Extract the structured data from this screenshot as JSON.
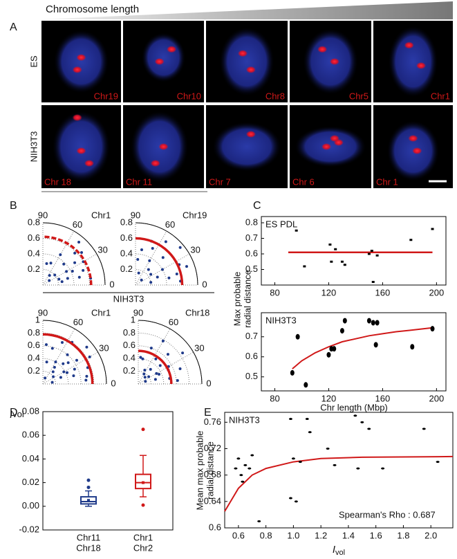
{
  "header": {
    "title": "Chromosome length"
  },
  "panel_labels": [
    "A",
    "B",
    "C",
    "D",
    "E"
  ],
  "panel_a": {
    "row_labels": [
      "ES",
      "NIH3T3"
    ],
    "rows": [
      [
        "Chr19",
        "Chr10",
        "Chr8",
        "Chr5",
        "Chr1"
      ],
      [
        "Chr 18",
        "Chr 11",
        "Chr 7",
        "Chr 6",
        "Chr 1"
      ]
    ]
  },
  "panel_b": {
    "group_label": "NIH3T3"
  },
  "chart_data": [
    {
      "type": "polar",
      "title": "Chr1",
      "rlim": [
        0,
        0.8
      ],
      "rticks": [
        0.2,
        0.4,
        0.6,
        0.8
      ],
      "angle_ticks": [
        0,
        30,
        60,
        90
      ],
      "r": [
        0.72,
        0.65,
        0.6,
        0.55,
        0.5,
        0.45,
        0.42,
        0.38,
        0.33,
        0.3,
        0.25,
        0.2,
        0.15,
        0.62,
        0.58,
        0.48,
        0.35,
        0.28,
        0.22,
        0.1
      ],
      "theta": [
        50,
        40,
        30,
        20,
        35,
        60,
        25,
        45,
        15,
        70,
        10,
        40,
        55,
        8,
        45,
        12,
        30,
        80,
        20,
        35
      ],
      "color": "#1f3a8a",
      "fit_radius": 0.62,
      "fit_color": "#d01818",
      "fit_dashed": true
    },
    {
      "type": "polar",
      "title": "Chr19",
      "rlim": [
        0,
        0.8
      ],
      "rticks": [
        0.2,
        0.4,
        0.6,
        0.8
      ],
      "angle_ticks": [
        0,
        30,
        60,
        90
      ],
      "r": [
        0.75,
        0.68,
        0.62,
        0.6,
        0.55,
        0.5,
        0.46,
        0.4,
        0.36,
        0.3,
        0.26,
        0.2,
        0.16,
        0.1,
        0.7,
        0.52,
        0.44,
        0.33,
        0.24,
        0.58
      ],
      "theta": [
        40,
        55,
        25,
        70,
        15,
        45,
        80,
        30,
        60,
        20,
        50,
        10,
        75,
        40,
        20,
        65,
        12,
        85,
        35,
        5
      ],
      "color": "#1f3a8a",
      "fit_radius": 0.6,
      "fit_color": "#d01818",
      "fit_dashed": false
    },
    {
      "type": "polar",
      "title": "Chr1",
      "rlim": [
        0,
        1
      ],
      "rticks": [
        0.2,
        0.4,
        0.6,
        0.8,
        1
      ],
      "angle_ticks": [
        0,
        30,
        60,
        90
      ],
      "r": [
        0.9,
        0.85,
        0.8,
        0.75,
        0.72,
        0.7,
        0.65,
        0.6,
        0.58,
        0.55,
        0.5,
        0.45,
        0.4,
        0.38,
        0.35,
        0.3,
        0.25,
        0.2,
        0.15,
        0.1,
        0.68,
        0.62,
        0.52,
        0.42,
        0.32
      ],
      "theta": [
        40,
        30,
        55,
        20,
        65,
        10,
        35,
        50,
        75,
        25,
        15,
        45,
        60,
        30,
        80,
        20,
        50,
        35,
        10,
        70,
        5,
        85,
        40,
        25,
        55
      ],
      "color": "#1f3a8a",
      "fit_radius": 0.78,
      "fit_color": "#d01818",
      "fit_dashed": false
    },
    {
      "type": "polar",
      "title": "Chr18",
      "rlim": [
        0,
        1
      ],
      "rticks": [
        0.2,
        0.4,
        0.6,
        0.8,
        1
      ],
      "angle_ticks": [
        0,
        30,
        60,
        90
      ],
      "r": [
        0.85,
        0.78,
        0.7,
        0.66,
        0.6,
        0.55,
        0.5,
        0.48,
        0.45,
        0.4,
        0.36,
        0.3,
        0.28,
        0.24,
        0.2,
        0.15,
        0.12,
        0.62,
        0.42,
        0.33,
        0.18,
        0.52
      ],
      "theta": [
        35,
        60,
        20,
        45,
        70,
        30,
        10,
        55,
        40,
        80,
        25,
        50,
        15,
        65,
        35,
        45,
        20,
        5,
        85,
        30,
        60,
        25
      ],
      "color": "#1f3a8a",
      "fit_radius": 0.52,
      "fit_color": "#d01818",
      "fit_dashed": false
    },
    {
      "type": "scatter",
      "annotation": "ES PDL",
      "y_label": [
        "Max probable",
        "radial distance"
      ],
      "x": [
        96,
        102,
        121,
        122,
        125,
        130,
        132,
        150,
        152,
        153,
        156,
        181,
        197
      ],
      "values": [
        0.75,
        0.52,
        0.66,
        0.55,
        0.63,
        0.55,
        0.53,
        0.6,
        0.62,
        0.42,
        0.59,
        0.69,
        0.76
      ],
      "color": "#000000",
      "marker": "dash",
      "fit": {
        "x": [
          90,
          197
        ],
        "values": [
          0.61,
          0.61
        ],
        "color": "#d01818"
      },
      "xlim": [
        70,
        207
      ],
      "xticks": [
        80,
        120,
        160,
        200
      ],
      "ylim": [
        0.4,
        0.84
      ],
      "yticks": [
        0.5,
        0.6,
        0.7,
        0.8
      ]
    },
    {
      "type": "scatter",
      "annotation": "NIH3T3",
      "x_label": "Chr length (Mbp)",
      "x": [
        93,
        97,
        103,
        120,
        122,
        124,
        130,
        132,
        150,
        153,
        155,
        156,
        182,
        197
      ],
      "values": [
        0.52,
        0.7,
        0.46,
        0.61,
        0.64,
        0.64,
        0.73,
        0.78,
        0.78,
        0.77,
        0.66,
        0.77,
        0.65,
        0.74
      ],
      "color": "#000000",
      "marker": "dot",
      "fit": {
        "x": [
          93,
          100,
          110,
          120,
          130,
          140,
          150,
          160,
          170,
          180,
          197
        ],
        "values": [
          0.54,
          0.58,
          0.62,
          0.65,
          0.675,
          0.69,
          0.705,
          0.715,
          0.725,
          0.732,
          0.745
        ],
        "color": "#d01818"
      },
      "xlim": [
        70,
        207
      ],
      "xticks": [
        80,
        120,
        160,
        200
      ],
      "ylim": [
        0.43,
        0.82
      ],
      "yticks": [
        0.5,
        0.6,
        0.7
      ]
    },
    {
      "type": "box",
      "y_label": {
        "main": "I",
        "sub": "vol"
      },
      "category_lines": [
        [
          "Chr11",
          "Chr18"
        ],
        [
          "Chr1",
          "Chr2"
        ]
      ],
      "boxes": [
        {
          "min": 0.0,
          "q1": 0.002,
          "median": 0.004,
          "q3": 0.008,
          "max": 0.013,
          "mean": 0.005,
          "outliers": [
            0.016,
            0.022
          ],
          "color": "#1f3a8a"
        },
        {
          "min": 0.008,
          "q1": 0.015,
          "median": 0.02,
          "q3": 0.027,
          "max": 0.043,
          "mean": 0.02,
          "outliers": [
            0.065,
            0.001
          ],
          "color": "#d01818"
        }
      ],
      "ylim": [
        -0.02,
        0.08
      ],
      "yticks": [
        {
          "value": -0.02,
          "label": "-0.02"
        },
        {
          "value": 0,
          "label": "0.00"
        },
        {
          "value": 0.02,
          "label": "0.02"
        },
        {
          "value": 0.04,
          "label": "0.04"
        },
        {
          "value": 0.06,
          "label": "0.06"
        },
        {
          "value": 0.08,
          "label": "0.08"
        }
      ]
    },
    {
      "type": "scatter",
      "annotation": "NIH3T3",
      "note": "Spearman's Rho : 0.687",
      "y_label": [
        "Mean max probable",
        "radial distance"
      ],
      "x_label_parts": {
        "main": "I",
        "sub": "vol"
      },
      "x": [
        0.58,
        0.6,
        0.62,
        0.63,
        0.65,
        0.68,
        0.7,
        0.75,
        0.98,
        0.98,
        1.0,
        1.02,
        1.05,
        1.1,
        1.12,
        1.25,
        1.3,
        1.45,
        1.47,
        1.5,
        1.55,
        1.65,
        1.95,
        2.05
      ],
      "values": [
        0.69,
        0.705,
        0.68,
        0.67,
        0.695,
        0.69,
        0.71,
        0.61,
        0.765,
        0.645,
        0.705,
        0.64,
        0.7,
        0.765,
        0.745,
        0.72,
        0.695,
        0.77,
        0.69,
        0.76,
        0.75,
        0.69,
        0.75,
        0.7
      ],
      "color": "#000000",
      "marker": "dot",
      "fit": {
        "x": [
          0.5,
          0.6,
          0.7,
          0.8,
          1.0,
          1.2,
          1.5,
          2.16
        ],
        "values": [
          0.625,
          0.66,
          0.68,
          0.69,
          0.7,
          0.705,
          0.707,
          0.708
        ],
        "color": "#d01818"
      },
      "xlim": [
        0.5,
        2.16
      ],
      "xticks": [
        0.6,
        0.8,
        {
          "value": 1,
          "label": "1.0"
        },
        1.2,
        1.4,
        1.6,
        1.8,
        {
          "value": 2,
          "label": "2.0"
        }
      ],
      "ylim": [
        0.6,
        0.775
      ],
      "yticks": [
        0.6,
        0.64,
        0.68,
        0.72,
        0.76
      ]
    }
  ]
}
